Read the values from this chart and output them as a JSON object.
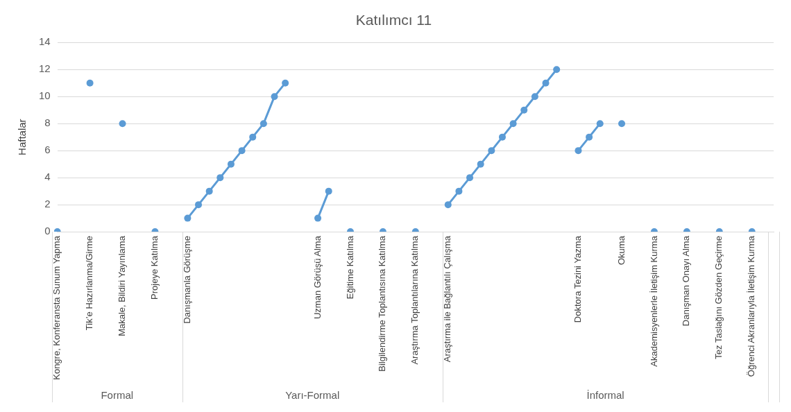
{
  "chart_data": {
    "type": "line",
    "title": "Katılımcı 11",
    "ylabel": "Haftalar",
    "categories": [
      "Kongre, Konferansta Sunum Yapma",
      null,
      null,
      "Tik’e Hazırlanma/Girme",
      null,
      null,
      "Makale, Bildiri Yayınlama",
      null,
      null,
      "Projeye Katılma",
      null,
      null,
      "Danışmanla Görüşme",
      null,
      null,
      null,
      null,
      null,
      null,
      null,
      null,
      null,
      null,
      null,
      "Uzman Görüşü Alma",
      null,
      null,
      "Eğitime Katılma",
      null,
      null,
      "Bilgilendirme Toplantısına Katılma",
      null,
      null,
      "Araştırma Toplantılarına Katılma",
      null,
      null,
      "Araştırma ile Bağlantılı Çalışma",
      null,
      null,
      null,
      null,
      null,
      null,
      null,
      null,
      null,
      null,
      null,
      "Doktora Tezini Yazma",
      null,
      null,
      null,
      "Okuma",
      null,
      null,
      "Akademisyenlerle İletişim Kurma",
      null,
      null,
      "Danışman Onayı Alma",
      null,
      null,
      "Tez Taslağını Gözden Geçirme",
      null,
      null,
      "Öğrenci Akranlarıyla İletişim Kurma",
      null,
      null
    ],
    "series": [
      {
        "color": "#5b9bd5",
        "values": [
          0,
          null,
          null,
          11,
          null,
          null,
          8,
          null,
          null,
          0,
          null,
          null,
          1,
          2,
          3,
          4,
          5,
          6,
          7,
          8,
          10,
          11,
          null,
          null,
          1,
          3,
          null,
          0,
          null,
          null,
          0,
          null,
          null,
          0,
          null,
          null,
          2,
          3,
          4,
          5,
          6,
          7,
          8,
          9,
          10,
          11,
          12,
          null,
          6,
          7,
          8,
          null,
          8,
          null,
          null,
          0,
          null,
          null,
          0,
          null,
          null,
          0,
          null,
          null,
          0,
          null,
          null
        ]
      }
    ],
    "ylim": [
      0,
      14
    ],
    "yticks": [
      0,
      2,
      4,
      6,
      8,
      10,
      12,
      14
    ],
    "grid": "y",
    "legend": false,
    "marker": "circle",
    "line_style": "solid",
    "annotations": [
      "Formal",
      "Yarı-Formal",
      "İnformal"
    ]
  }
}
